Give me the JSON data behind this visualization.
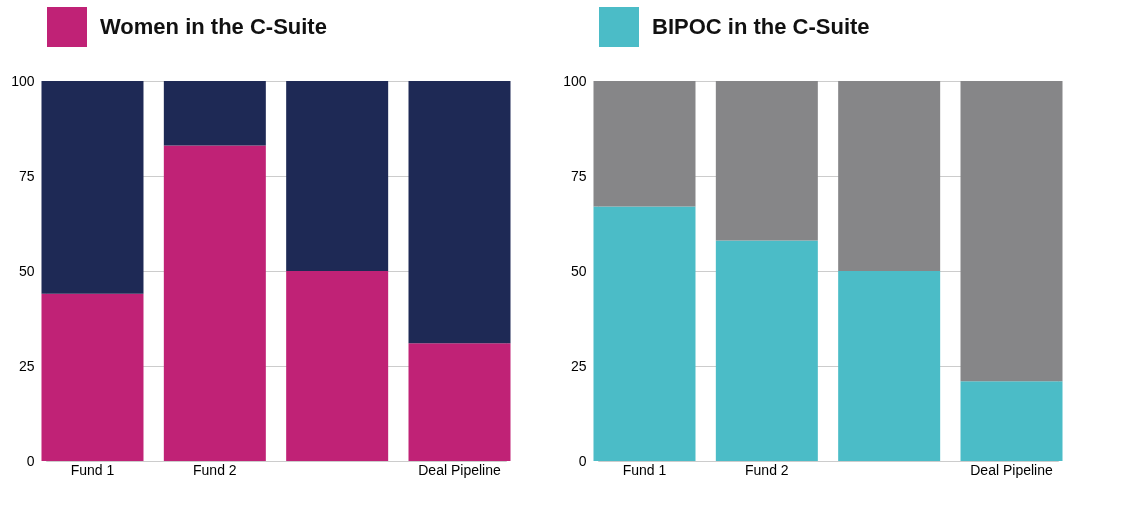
{
  "chart_data": [
    {
      "type": "bar",
      "stacked": true,
      "categories": [
        "Fund 1",
        "Fund 2",
        null,
        "Deal Pipeline"
      ],
      "ylim": [
        0,
        100
      ],
      "yticks": [
        0,
        25,
        50,
        75,
        100
      ],
      "grid": "y",
      "legend": "top left",
      "series": [
        {
          "name": "Women in the C-Suite",
          "color": "#c02276",
          "values": [
            44,
            83,
            50,
            31
          ]
        },
        {
          "color": "#1e2955",
          "values": [
            56,
            17,
            50,
            69
          ]
        }
      ]
    },
    {
      "type": "bar",
      "stacked": true,
      "categories": [
        "Fund 1",
        "Fund 2",
        null,
        "Deal Pipeline"
      ],
      "ylim": [
        0,
        100
      ],
      "yticks": [
        0,
        25,
        50,
        75,
        100
      ],
      "grid": "y",
      "legend": "top left",
      "series": [
        {
          "name": "BIPOC in the C-Suite",
          "color": "#4bbcc7",
          "values": [
            67,
            58,
            50,
            21
          ]
        },
        {
          "color": "#868688",
          "values": [
            33,
            42,
            50,
            79
          ]
        }
      ]
    }
  ]
}
